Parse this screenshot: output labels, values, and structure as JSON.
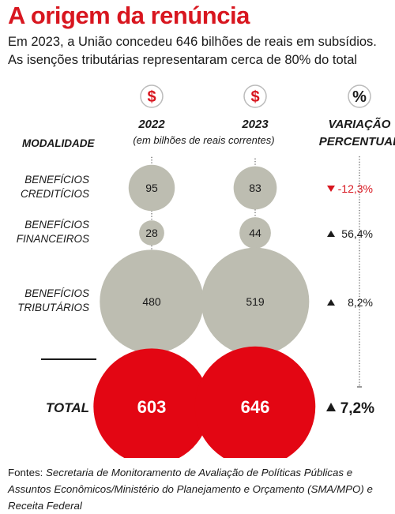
{
  "header": {
    "title": "A origem da renúncia",
    "subtitle_line1": "Em 2023, a União concedeu 646 bilhões de reais em subsídios.",
    "subtitle_line2": "As isenções tributárias representaram cerca de 80% do total"
  },
  "chart_data": {
    "type": "bubble",
    "row_header": "MODALIDADE",
    "unit_note": "(em bilhões de reais correntes)",
    "columns": [
      {
        "label": "2022",
        "icon": "$"
      },
      {
        "label": "2023",
        "icon": "$"
      },
      {
        "label_line1": "VARIAÇÃO",
        "label_line2": "PERCENTUAL",
        "icon": "%"
      }
    ],
    "rows": [
      {
        "label_line1": "BENEFÍCIOS",
        "label_line2": "CREDITÍCIOS",
        "v2022": 95,
        "v2023": 83,
        "variation": "-12,3%",
        "direction": "down"
      },
      {
        "label_line1": "BENEFÍCIOS",
        "label_line2": "FINANCEIROS",
        "v2022": 28,
        "v2023": 44,
        "variation": "56,4%",
        "direction": "up"
      },
      {
        "label_line1": "BENEFÍCIOS",
        "label_line2": "TRIBUTÁRIOS",
        "v2022": 480,
        "v2023": 519,
        "variation": "8,2%",
        "direction": "up"
      }
    ],
    "total": {
      "label": "TOTAL",
      "v2022": 603,
      "v2023": 646,
      "variation": "7,2%",
      "direction": "up"
    },
    "colors": {
      "bubble": "#bdbdb1",
      "total": "#e30613",
      "negative": "#d8161f",
      "text": "#1a1a1a"
    }
  },
  "sources": {
    "prefix": "Fontes: ",
    "text": "Secretaria de Monitoramento de Avaliação de Políticas Públicas e Assuntos Econômicos/Ministério do Planejamento e Orçamento (SMA/MPO) e Receita Federal"
  }
}
